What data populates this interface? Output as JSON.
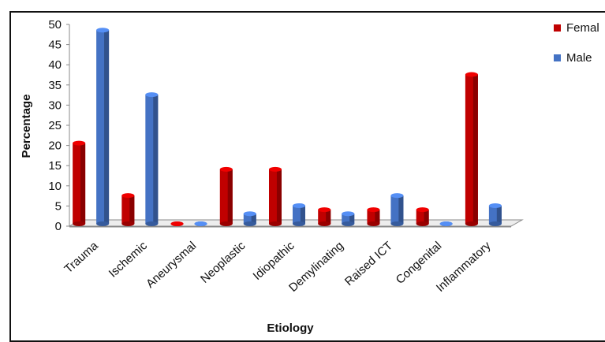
{
  "chart_data": {
    "type": "bar",
    "title": "",
    "xlabel": "Etiology",
    "ylabel": "Percentage",
    "ylim": [
      0,
      50
    ],
    "yticks": [
      0,
      5,
      10,
      15,
      20,
      25,
      30,
      35,
      40,
      45,
      50
    ],
    "categories": [
      "Trauma",
      "Ischemic",
      "Aneurysmal",
      "Neoplastic",
      "Idiopathic",
      "Demylinating",
      "Raised ICT",
      "Congenital",
      "Inflammatory"
    ],
    "series": [
      {
        "name": "Femal",
        "color": "#c00000",
        "values": [
          20,
          7,
          0,
          13.5,
          13.5,
          3.5,
          3.5,
          3.5,
          37
        ]
      },
      {
        "name": "Male",
        "color": "#4472c4",
        "values": [
          48,
          32,
          0,
          2.5,
          4.5,
          2.5,
          7,
          0,
          4.5
        ]
      }
    ],
    "legend_position": "right",
    "grid": false
  }
}
